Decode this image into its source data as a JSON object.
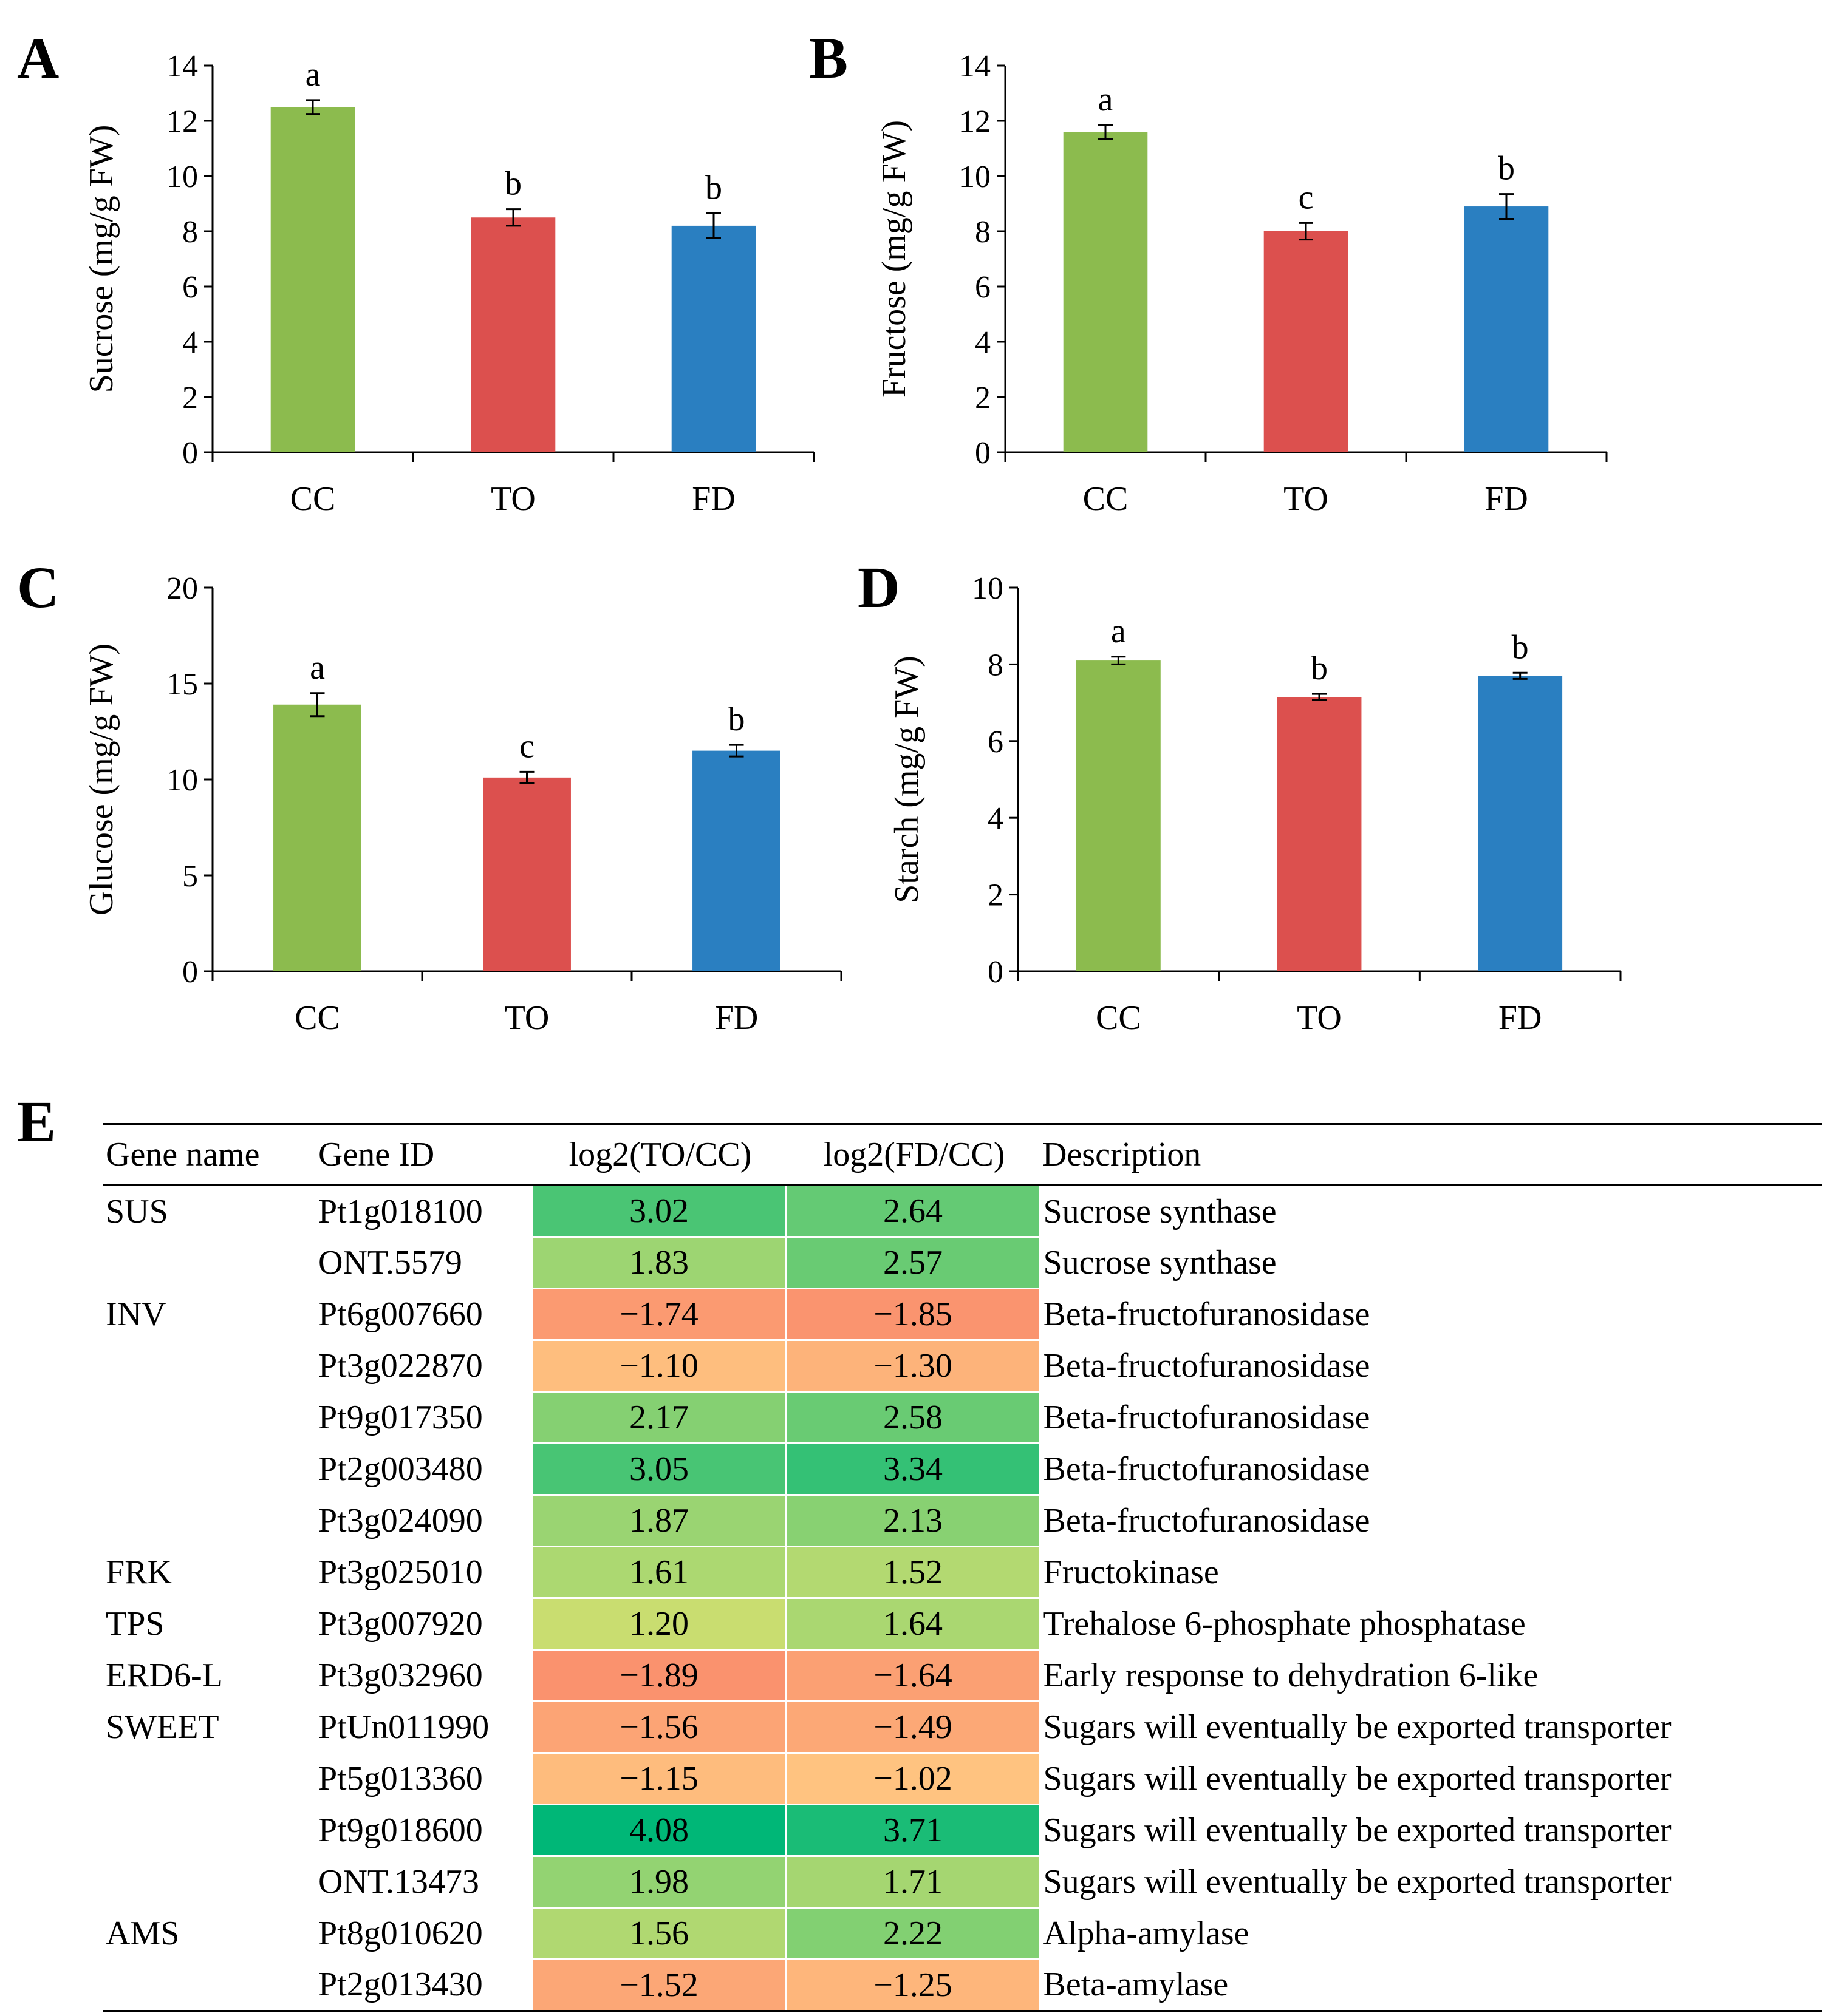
{
  "chart_data": [
    {
      "panel": "A",
      "type": "bar",
      "categories": [
        "CC",
        "TO",
        "FD"
      ],
      "values": [
        12.5,
        8.5,
        8.2
      ],
      "errors": [
        0.25,
        0.3,
        0.45
      ],
      "letters": [
        "a",
        "b",
        "b"
      ],
      "colors": [
        "#8cbb4e",
        "#dc504e",
        "#2a7fc1"
      ],
      "ylabel": "Sucrose (mg/g FW)",
      "ylim": [
        0,
        14
      ],
      "yticks": [
        0,
        2,
        4,
        6,
        8,
        10,
        12,
        14
      ]
    },
    {
      "panel": "B",
      "type": "bar",
      "categories": [
        "CC",
        "TO",
        "FD"
      ],
      "values": [
        11.6,
        8.0,
        8.9
      ],
      "errors": [
        0.25,
        0.3,
        0.45
      ],
      "letters": [
        "a",
        "c",
        "b"
      ],
      "colors": [
        "#8cbb4e",
        "#dc504e",
        "#2a7fc1"
      ],
      "ylabel": "Fructose (mg/g FW)",
      "ylim": [
        0,
        14
      ],
      "yticks": [
        0,
        2,
        4,
        6,
        8,
        10,
        12,
        14
      ]
    },
    {
      "panel": "C",
      "type": "bar",
      "categories": [
        "CC",
        "TO",
        "FD"
      ],
      "values": [
        13.9,
        10.1,
        11.5
      ],
      "errors": [
        0.6,
        0.3,
        0.3
      ],
      "letters": [
        "a",
        "c",
        "b"
      ],
      "colors": [
        "#8cbb4e",
        "#dc504e",
        "#2a7fc1"
      ],
      "ylabel": "Glucose (mg/g FW)",
      "ylim": [
        0,
        20
      ],
      "yticks": [
        0,
        5,
        10,
        15,
        20
      ]
    },
    {
      "panel": "D",
      "type": "bar",
      "categories": [
        "CC",
        "TO",
        "FD"
      ],
      "values": [
        8.1,
        7.15,
        7.7
      ],
      "errors": [
        0.1,
        0.08,
        0.08
      ],
      "letters": [
        "a",
        "b",
        "b"
      ],
      "colors": [
        "#8cbb4e",
        "#dc504e",
        "#2a7fc1"
      ],
      "ylabel": "Starch (mg/g FW)",
      "ylim": [
        0,
        10
      ],
      "yticks": [
        0,
        2,
        4,
        6,
        8,
        10
      ]
    },
    {
      "panel": "E",
      "type": "table",
      "columns": [
        "Gene name",
        "Gene ID",
        "log2(TO/CC)",
        "log2(FD/CC)",
        "Description"
      ],
      "rows": [
        {
          "name": "SUS",
          "id": "Pt1g018100",
          "to": 3.02,
          "fd": 2.64,
          "to_text": "3.02",
          "fd_text": "2.64",
          "desc": "Sucrose synthase"
        },
        {
          "name": "",
          "id": "ONT.5579",
          "to": 1.83,
          "fd": 2.57,
          "to_text": "1.83",
          "fd_text": "2.57",
          "desc": "Sucrose synthase"
        },
        {
          "name": "INV",
          "id": "Pt6g007660",
          "to": -1.74,
          "fd": -1.85,
          "to_text": "−1.74",
          "fd_text": "−1.85",
          "desc": "Beta-fructofuranosidase"
        },
        {
          "name": "",
          "id": "Pt3g022870",
          "to": -1.1,
          "fd": -1.3,
          "to_text": "−1.10",
          "fd_text": "−1.30",
          "desc": "Beta-fructofuranosidase"
        },
        {
          "name": "",
          "id": "Pt9g017350",
          "to": 2.17,
          "fd": 2.58,
          "to_text": "2.17",
          "fd_text": "2.58",
          "desc": "Beta-fructofuranosidase"
        },
        {
          "name": "",
          "id": "Pt2g003480",
          "to": 3.05,
          "fd": 3.34,
          "to_text": "3.05",
          "fd_text": "3.34",
          "desc": "Beta-fructofuranosidase"
        },
        {
          "name": "",
          "id": "Pt3g024090",
          "to": 1.87,
          "fd": 2.13,
          "to_text": "1.87",
          "fd_text": "2.13",
          "desc": "Beta-fructofuranosidase"
        },
        {
          "name": "FRK",
          "id": "Pt3g025010",
          "to": 1.61,
          "fd": 1.52,
          "to_text": "1.61",
          "fd_text": "1.52",
          "desc": "Fructokinase"
        },
        {
          "name": "TPS",
          "id": "Pt3g007920",
          "to": 1.2,
          "fd": 1.64,
          "to_text": "1.20",
          "fd_text": "1.64",
          "desc": "Trehalose 6-phosphate phosphatase"
        },
        {
          "name": "ERD6-L",
          "id": "Pt3g032960",
          "to": -1.89,
          "fd": -1.64,
          "to_text": "−1.89",
          "fd_text": "−1.64",
          "desc": "Early response to dehydration 6-like"
        },
        {
          "name": "SWEET",
          "id": "PtUn011990",
          "to": -1.56,
          "fd": -1.49,
          "to_text": "−1.56",
          "fd_text": "−1.49",
          "desc": "Sugars will eventually be exported transporter"
        },
        {
          "name": "",
          "id": "Pt5g013360",
          "to": -1.15,
          "fd": -1.02,
          "to_text": "−1.15",
          "fd_text": "−1.02",
          "desc": "Sugars will eventually be exported transporter"
        },
        {
          "name": "",
          "id": "Pt9g018600",
          "to": 4.08,
          "fd": 3.71,
          "to_text": "4.08",
          "fd_text": "3.71",
          "desc": "Sugars will eventually be exported transporter"
        },
        {
          "name": "",
          "id": "ONT.13473",
          "to": 1.98,
          "fd": 1.71,
          "to_text": "1.98",
          "fd_text": "1.71",
          "desc": "Sugars will eventually be exported transporter"
        },
        {
          "name": "AMS",
          "id": "Pt8g010620",
          "to": 1.56,
          "fd": 2.22,
          "to_text": "1.56",
          "fd_text": "2.22",
          "desc": "Alpha-amylase"
        },
        {
          "name": "",
          "id": "Pt2g013430",
          "to": -1.52,
          "fd": -1.25,
          "to_text": "−1.52",
          "fd_text": "−1.25",
          "desc": "Beta-amylase"
        }
      ]
    }
  ]
}
